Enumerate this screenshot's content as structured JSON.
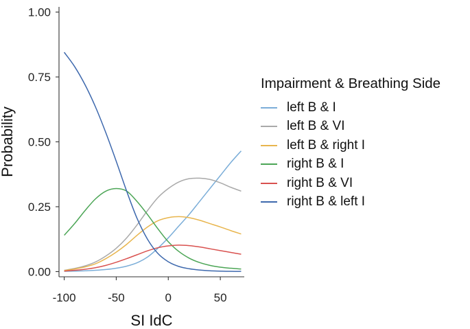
{
  "chart_data": {
    "type": "line",
    "title": "",
    "xlabel": "SI IdC",
    "ylabel": "Probability",
    "xlim": [
      -105,
      73
    ],
    "ylim": [
      -0.02,
      1.02
    ],
    "xticks": [
      -100,
      -50,
      0,
      50
    ],
    "xtick_labels": [
      "-100",
      "-50",
      "0",
      "50"
    ],
    "yticks": [
      0,
      0.25,
      0.5,
      0.75,
      1
    ],
    "ytick_labels": [
      "0.00",
      "0.25",
      "0.50",
      "0.75",
      "1.00"
    ],
    "legend_title": "Impairment & Breathing Side",
    "legend_position": "right",
    "x": [
      -100,
      -90,
      -80,
      -70,
      -60,
      -50,
      -40,
      -30,
      -20,
      -10,
      0,
      10,
      20,
      30,
      40,
      50,
      60,
      70
    ],
    "series": [
      {
        "name": "left B & I",
        "color": "#7aadd8",
        "values": [
          0.001,
          0.002,
          0.003,
          0.005,
          0.008,
          0.013,
          0.021,
          0.034,
          0.056,
          0.09,
          0.13,
          0.175,
          0.22,
          0.27,
          0.32,
          0.37,
          0.42,
          0.465
        ]
      },
      {
        "name": "left B & VI",
        "color": "#a9a9a9",
        "values": [
          0.005,
          0.012,
          0.022,
          0.037,
          0.06,
          0.09,
          0.13,
          0.18,
          0.235,
          0.285,
          0.32,
          0.345,
          0.358,
          0.36,
          0.355,
          0.342,
          0.325,
          0.31
        ]
      },
      {
        "name": "left B & right I",
        "color": "#e8b54d",
        "values": [
          0.004,
          0.01,
          0.018,
          0.03,
          0.05,
          0.075,
          0.105,
          0.14,
          0.172,
          0.196,
          0.208,
          0.212,
          0.208,
          0.198,
          0.185,
          0.172,
          0.158,
          0.145
        ]
      },
      {
        "name": "right B & I",
        "color": "#4ba555",
        "values": [
          0.14,
          0.185,
          0.235,
          0.28,
          0.31,
          0.32,
          0.31,
          0.27,
          0.22,
          0.165,
          0.115,
          0.078,
          0.052,
          0.035,
          0.024,
          0.017,
          0.013,
          0.01
        ]
      },
      {
        "name": "right B & VI",
        "color": "#d9514f",
        "values": [
          0.002,
          0.005,
          0.009,
          0.015,
          0.024,
          0.036,
          0.05,
          0.065,
          0.08,
          0.092,
          0.099,
          0.102,
          0.1,
          0.095,
          0.088,
          0.081,
          0.074,
          0.067
        ]
      },
      {
        "name": "right B & left I",
        "color": "#3d68ad",
        "values": [
          0.845,
          0.79,
          0.72,
          0.635,
          0.535,
          0.425,
          0.31,
          0.205,
          0.125,
          0.07,
          0.038,
          0.02,
          0.011,
          0.006,
          0.003,
          0.002,
          0.001,
          0.001
        ]
      }
    ]
  }
}
